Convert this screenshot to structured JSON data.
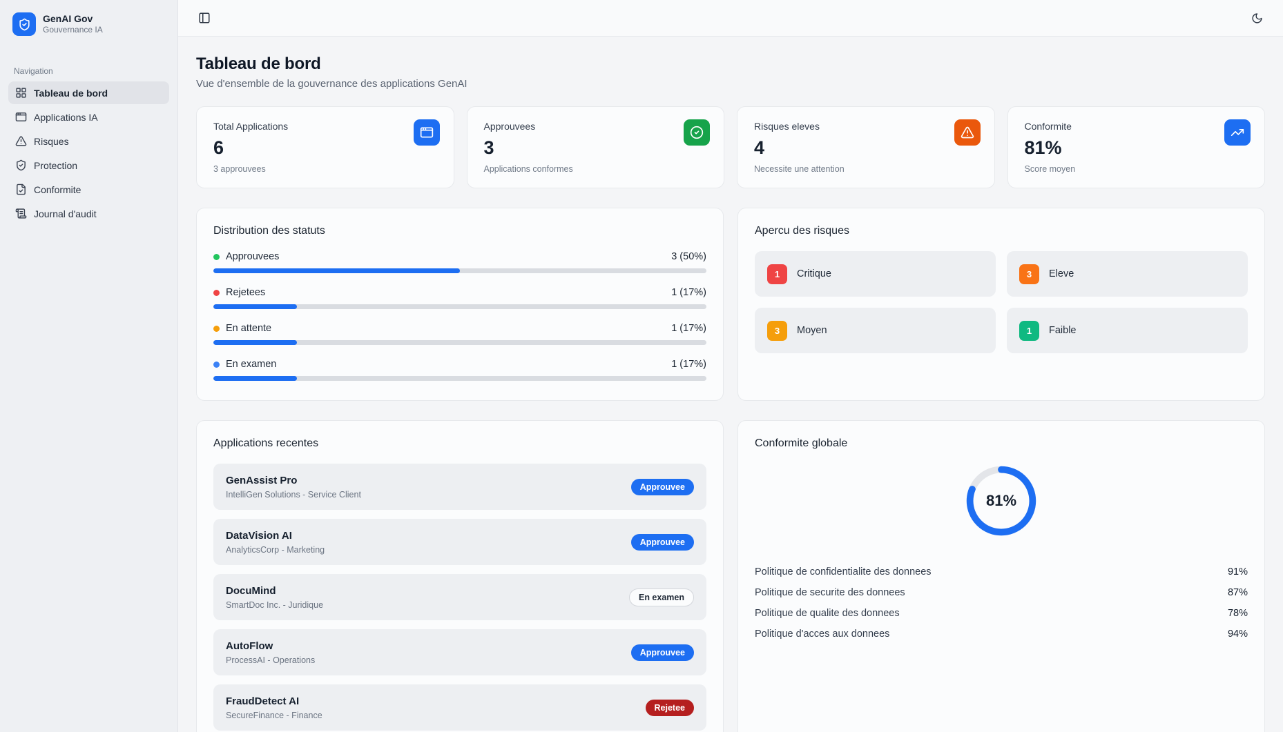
{
  "sidebar": {
    "brand": {
      "title": "GenAI Gov",
      "subtitle": "Gouvernance IA"
    },
    "section_label": "Navigation",
    "items": [
      {
        "label": "Tableau de bord",
        "icon": "layout-grid-icon",
        "active": true
      },
      {
        "label": "Applications IA",
        "icon": "app-window-icon",
        "active": false
      },
      {
        "label": "Risques",
        "icon": "triangle-alert-icon",
        "active": false
      },
      {
        "label": "Protection",
        "icon": "shield-check-icon",
        "active": false
      },
      {
        "label": "Conformite",
        "icon": "file-check-icon",
        "active": false
      },
      {
        "label": "Journal d'audit",
        "icon": "scroll-text-icon",
        "active": false
      }
    ]
  },
  "topbar": {
    "toggle_icon": "panel-left-icon",
    "theme_icon": "moon-icon"
  },
  "header": {
    "title": "Tableau de bord",
    "subtitle": "Vue d'ensemble de la gouvernance des applications GenAI"
  },
  "stat_cards": [
    {
      "label": "Total Applications",
      "value": "6",
      "sub": "3 approuvees",
      "icon": "app-window-icon",
      "icon_color": "#1d6ef2"
    },
    {
      "label": "Approuvees",
      "value": "3",
      "sub": "Applications conformes",
      "icon": "circle-check-icon",
      "icon_color": "#16a34a"
    },
    {
      "label": "Risques eleves",
      "value": "4",
      "sub": "Necessite une attention",
      "icon": "triangle-alert-icon",
      "icon_color": "#ea580c"
    },
    {
      "label": "Conformite",
      "value": "81%",
      "sub": "Score moyen",
      "icon": "trending-up-icon",
      "icon_color": "#1d6ef2"
    }
  ],
  "status_distribution": {
    "title": "Distribution des statuts",
    "bar_color": "#1d6ef2",
    "rows": [
      {
        "label": "Approuvees",
        "value_text": "3 (50%)",
        "percent": 50,
        "dot_color": "#22c55e"
      },
      {
        "label": "Rejetees",
        "value_text": "1 (17%)",
        "percent": 17,
        "dot_color": "#ef4444"
      },
      {
        "label": "En attente",
        "value_text": "1 (17%)",
        "percent": 17,
        "dot_color": "#f59e0b"
      },
      {
        "label": "En examen",
        "value_text": "1 (17%)",
        "percent": 17,
        "dot_color": "#3b82f6"
      }
    ]
  },
  "risk_overview": {
    "title": "Apercu des risques",
    "tiles": [
      {
        "count": "1",
        "label": "Critique",
        "color": "#ef4444"
      },
      {
        "count": "3",
        "label": "Eleve",
        "color": "#f97316"
      },
      {
        "count": "3",
        "label": "Moyen",
        "color": "#f59e0b"
      },
      {
        "count": "1",
        "label": "Faible",
        "color": "#10b981"
      }
    ]
  },
  "recent_apps": {
    "title": "Applications recentes",
    "items": [
      {
        "name": "GenAssist Pro",
        "meta": "IntelliGen Solutions - Service Client",
        "status": "Approuvee",
        "status_type": "approved"
      },
      {
        "name": "DataVision AI",
        "meta": "AnalyticsCorp - Marketing",
        "status": "Approuvee",
        "status_type": "approved"
      },
      {
        "name": "DocuMind",
        "meta": "SmartDoc Inc. - Juridique",
        "status": "En examen",
        "status_type": "review"
      },
      {
        "name": "AutoFlow",
        "meta": "ProcessAI - Operations",
        "status": "Approuvee",
        "status_type": "approved"
      },
      {
        "name": "FraudDetect AI",
        "meta": "SecureFinance - Finance",
        "status": "Rejetee",
        "status_type": "rejected"
      }
    ]
  },
  "compliance": {
    "title": "Conformite globale",
    "score_percent": 81,
    "score_text": "81%",
    "ring_color": "#1d6ef2",
    "ring_track_color": "#e3e5e9",
    "policies": [
      {
        "label": "Politique de confidentialite des donnees",
        "value": "91%"
      },
      {
        "label": "Politique de securite des donnees",
        "value": "87%"
      },
      {
        "label": "Politique de qualite des donnees",
        "value": "78%"
      },
      {
        "label": "Politique d'acces aux donnees",
        "value": "94%"
      }
    ]
  }
}
